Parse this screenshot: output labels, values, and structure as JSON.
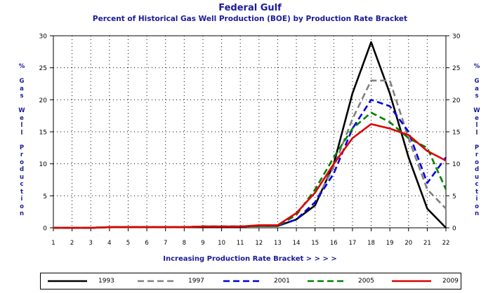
{
  "chart_data": {
    "type": "line",
    "title": "Federal Gulf",
    "subtitle": "Percent of Historical Gas Well Production (BOE) by Production Rate Bracket",
    "xlabel": "Increasing Production Rate Bracket > > > >",
    "ylabel": "% Gas Well Production",
    "x": [
      1,
      2,
      3,
      4,
      5,
      6,
      7,
      8,
      9,
      10,
      11,
      12,
      13,
      14,
      15,
      16,
      17,
      18,
      19,
      20,
      21,
      22
    ],
    "xlim": [
      1,
      22
    ],
    "ylim": [
      0,
      30
    ],
    "yticks": [
      0,
      5,
      10,
      15,
      20,
      25,
      30
    ],
    "grid": true,
    "legend_position": "bottom",
    "series": [
      {
        "name": "1993",
        "color": "#000000",
        "dash": "solid",
        "values": [
          0,
          0,
          0,
          0.1,
          0.1,
          0.1,
          0.1,
          0.1,
          0.2,
          0.2,
          0.2,
          0.3,
          0.3,
          1.3,
          3.5,
          10,
          21,
          29,
          21,
          11,
          3,
          0
        ]
      },
      {
        "name": "1997",
        "color": "#808080",
        "dash": "dash",
        "values": [
          0,
          0,
          0,
          0.1,
          0.1,
          0.1,
          0.1,
          0.1,
          0.2,
          0.2,
          0.2,
          0.3,
          0.3,
          1.3,
          4,
          9.5,
          17,
          23,
          23,
          14,
          6,
          3
        ]
      },
      {
        "name": "2001",
        "color": "#0000dd",
        "dash": "dash",
        "values": [
          0,
          0,
          0,
          0.1,
          0.1,
          0.1,
          0.1,
          0.1,
          0.2,
          0.2,
          0.2,
          0.3,
          0.3,
          1.3,
          4,
          8.5,
          15.5,
          20,
          19,
          15,
          7,
          11
        ]
      },
      {
        "name": "2005",
        "color": "#008000",
        "dash": "dash",
        "values": [
          0,
          0,
          0,
          0.1,
          0.1,
          0.1,
          0.1,
          0.1,
          0.2,
          0.2,
          0.2,
          0.3,
          0.3,
          2,
          6,
          11,
          15.5,
          18,
          16.5,
          14,
          12.5,
          6
        ]
      },
      {
        "name": "2009",
        "color": "#dd0000",
        "dash": "solid",
        "values": [
          0,
          0,
          0,
          0.1,
          0.1,
          0.1,
          0.1,
          0.1,
          0.2,
          0.2,
          0.2,
          0.4,
          0.4,
          2.3,
          5.5,
          10,
          14,
          16.2,
          15.5,
          14.5,
          12,
          10.5
        ]
      }
    ]
  }
}
